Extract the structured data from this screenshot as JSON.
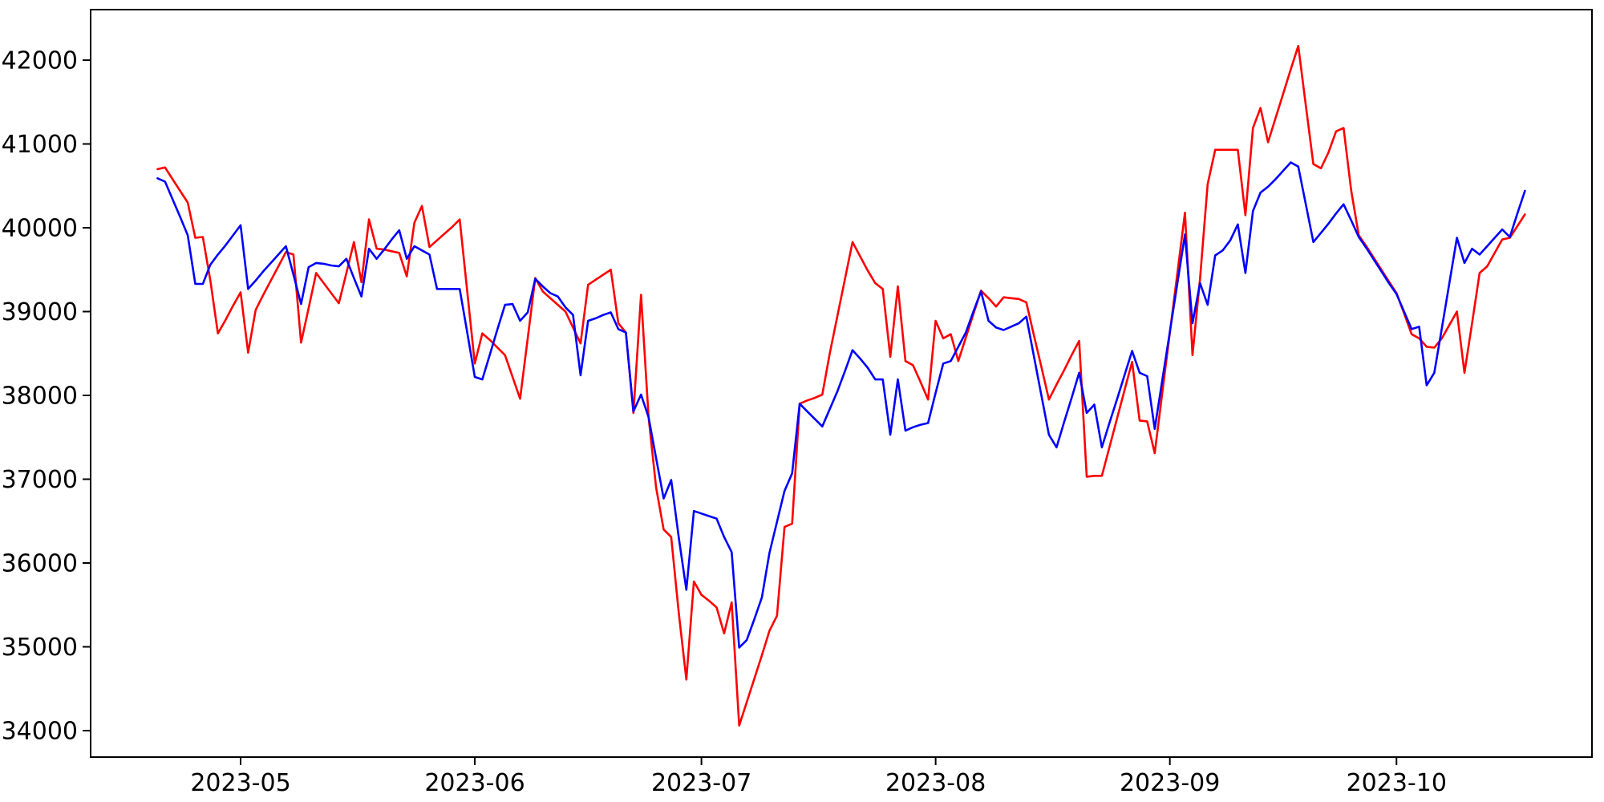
{
  "figure": {
    "background_color": "#ffffff",
    "spine_color": "#000000",
    "tick_label_color": "#000000"
  },
  "chart_data": {
    "type": "line",
    "title": "",
    "xlabel": "",
    "ylabel": "",
    "grid": false,
    "legend": null,
    "x_tick_labels": [
      "2023-05",
      "2023-06",
      "2023-07",
      "2023-08",
      "2023-09",
      "2023-10"
    ],
    "y_tick_labels": [
      "34000",
      "35000",
      "36000",
      "37000",
      "38000",
      "39000",
      "40000",
      "41000",
      "42000"
    ],
    "y_ticks": [
      34000,
      35000,
      36000,
      37000,
      38000,
      39000,
      40000,
      41000,
      42000
    ],
    "ylim": [
      33700,
      42600
    ],
    "xlim": [
      "2023-04-11",
      "2023-10-27"
    ],
    "x": [
      "2023-04-20",
      "2023-04-21",
      "2023-04-22",
      "2023-04-23",
      "2023-04-24",
      "2023-04-25",
      "2023-04-26",
      "2023-04-27",
      "2023-04-28",
      "2023-04-29",
      "2023-04-30",
      "2023-05-01",
      "2023-05-02",
      "2023-05-03",
      "2023-05-04",
      "2023-05-05",
      "2023-05-06",
      "2023-05-07",
      "2023-05-08",
      "2023-05-09",
      "2023-05-10",
      "2023-05-11",
      "2023-05-12",
      "2023-05-13",
      "2023-05-14",
      "2023-05-15",
      "2023-05-16",
      "2023-05-17",
      "2023-05-18",
      "2023-05-19",
      "2023-05-20",
      "2023-05-21",
      "2023-05-22",
      "2023-05-23",
      "2023-05-24",
      "2023-05-25",
      "2023-05-26",
      "2023-05-27",
      "2023-05-28",
      "2023-05-29",
      "2023-05-30",
      "2023-05-31",
      "2023-06-01",
      "2023-06-02",
      "2023-06-03",
      "2023-06-04",
      "2023-06-05",
      "2023-06-06",
      "2023-06-07",
      "2023-06-08",
      "2023-06-09",
      "2023-06-10",
      "2023-06-11",
      "2023-06-12",
      "2023-06-13",
      "2023-06-14",
      "2023-06-15",
      "2023-06-16",
      "2023-06-17",
      "2023-06-18",
      "2023-06-19",
      "2023-06-20",
      "2023-06-21",
      "2023-06-22",
      "2023-06-23",
      "2023-06-24",
      "2023-06-25",
      "2023-06-26",
      "2023-06-27",
      "2023-06-28",
      "2023-06-29",
      "2023-06-30",
      "2023-07-01",
      "2023-07-02",
      "2023-07-03",
      "2023-07-04",
      "2023-07-05",
      "2023-07-06",
      "2023-07-07",
      "2023-07-08",
      "2023-07-09",
      "2023-07-10",
      "2023-07-11",
      "2023-07-12",
      "2023-07-13",
      "2023-07-14",
      "2023-07-15",
      "2023-07-16",
      "2023-07-17",
      "2023-07-18",
      "2023-07-19",
      "2023-07-20",
      "2023-07-21",
      "2023-07-22",
      "2023-07-23",
      "2023-07-24",
      "2023-07-25",
      "2023-07-26",
      "2023-07-27",
      "2023-07-28",
      "2023-07-29",
      "2023-07-30",
      "2023-07-31",
      "2023-08-01",
      "2023-08-02",
      "2023-08-03",
      "2023-08-04",
      "2023-08-05",
      "2023-08-06",
      "2023-08-07",
      "2023-08-08",
      "2023-08-09",
      "2023-08-10",
      "2023-08-11",
      "2023-08-12",
      "2023-08-13",
      "2023-08-14",
      "2023-08-15",
      "2023-08-16",
      "2023-08-17",
      "2023-08-18",
      "2023-08-19",
      "2023-08-20",
      "2023-08-21",
      "2023-08-22",
      "2023-08-23",
      "2023-08-24",
      "2023-08-25",
      "2023-08-26",
      "2023-08-27",
      "2023-08-28",
      "2023-08-29",
      "2023-08-30",
      "2023-08-31",
      "2023-09-01",
      "2023-09-02",
      "2023-09-03",
      "2023-09-04",
      "2023-09-05",
      "2023-09-06",
      "2023-09-07",
      "2023-09-08",
      "2023-09-09",
      "2023-09-10",
      "2023-09-11",
      "2023-09-12",
      "2023-09-13",
      "2023-09-14",
      "2023-09-15",
      "2023-09-16",
      "2023-09-17",
      "2023-09-18",
      "2023-09-19",
      "2023-09-20",
      "2023-09-21",
      "2023-09-22",
      "2023-09-23",
      "2023-09-24",
      "2023-09-25",
      "2023-09-26",
      "2023-09-27",
      "2023-09-28",
      "2023-09-29",
      "2023-09-30",
      "2023-10-01",
      "2023-10-02",
      "2023-10-03",
      "2023-10-04",
      "2023-10-05",
      "2023-10-06",
      "2023-10-07",
      "2023-10-08",
      "2023-10-09",
      "2023-10-10",
      "2023-10-11",
      "2023-10-12",
      "2023-10-13",
      "2023-10-14",
      "2023-10-15",
      "2023-10-16",
      "2023-10-17",
      "2023-10-18"
    ],
    "series": [
      {
        "name": "red-series",
        "color": "#ff0000",
        "values": [
          40700,
          40720,
          40580,
          40440,
          40300,
          39880,
          39890,
          39370,
          38740,
          38900,
          39070,
          39230,
          38510,
          39020,
          39200,
          39370,
          39540,
          39710,
          39680,
          38630,
          39040,
          39460,
          39340,
          39220,
          39100,
          39460,
          39830,
          39350,
          40100,
          39750,
          39740,
          39720,
          39700,
          39420,
          40060,
          40260,
          39770,
          39850,
          39930,
          40010,
          40100,
          39240,
          38380,
          38740,
          38660,
          38570,
          38480,
          38220,
          37960,
          38680,
          39400,
          39240,
          39160,
          39080,
          39000,
          38810,
          38620,
          39320,
          39380,
          39440,
          39500,
          38860,
          38750,
          37790,
          39200,
          37740,
          36900,
          36400,
          36310,
          35400,
          34610,
          35780,
          35620,
          35550,
          35470,
          35160,
          35530,
          34060,
          34340,
          34620,
          34900,
          35190,
          35370,
          36430,
          36470,
          37900,
          37940,
          37970,
          38010,
          38510,
          38950,
          39390,
          39830,
          39660,
          39490,
          39340,
          39270,
          38460,
          39300,
          38410,
          38360,
          38160,
          37950,
          38890,
          38680,
          38730,
          38410,
          38690,
          38970,
          39250,
          39160,
          39060,
          39170,
          39160,
          39150,
          39110,
          38720,
          38340,
          37950,
          38130,
          38300,
          38480,
          38650,
          37030,
          37040,
          37040,
          37380,
          37720,
          38060,
          38400,
          37700,
          37690,
          37310,
          38030,
          38750,
          39460,
          40180,
          38480,
          39390,
          40520,
          40930,
          40930,
          40930,
          40930,
          40150,
          41190,
          41430,
          41020,
          41310,
          41600,
          41890,
          42170,
          41460,
          40760,
          40710,
          40900,
          41150,
          41190,
          40450,
          39910,
          39780,
          39640,
          39500,
          39360,
          39220,
          38980,
          38730,
          38680,
          38580,
          38570,
          38680,
          38840,
          39000,
          38270,
          38860,
          39460,
          39540,
          39700,
          39860,
          39880,
          40020,
          40160
        ]
      },
      {
        "name": "blue-series",
        "color": "#0000ff",
        "values": [
          40590,
          40550,
          40340,
          40130,
          39910,
          39330,
          39330,
          39560,
          39680,
          39790,
          39910,
          40030,
          39270,
          39370,
          39480,
          39580,
          39680,
          39780,
          39440,
          39090,
          39530,
          39580,
          39570,
          39550,
          39540,
          39630,
          39400,
          39180,
          39750,
          39630,
          39740,
          39860,
          39970,
          39630,
          39780,
          39730,
          39680,
          39270,
          39270,
          39270,
          39270,
          38750,
          38220,
          38190,
          38490,
          38790,
          39080,
          39090,
          38890,
          38990,
          39390,
          39300,
          39220,
          39180,
          39050,
          38960,
          38240,
          38890,
          38920,
          38960,
          38990,
          38790,
          38750,
          37810,
          38010,
          37740,
          37250,
          36770,
          36990,
          36300,
          35680,
          36620,
          36590,
          36560,
          36530,
          36310,
          36130,
          34990,
          35080,
          35330,
          35590,
          36120,
          36490,
          36860,
          37070,
          37900,
          37810,
          37720,
          37630,
          37840,
          38050,
          38290,
          38540,
          38440,
          38330,
          38190,
          38190,
          37530,
          38190,
          37580,
          37620,
          37650,
          37670,
          38030,
          38380,
          38410,
          38580,
          38750,
          39000,
          39240,
          38890,
          38810,
          38780,
          38820,
          38860,
          38940,
          38470,
          38000,
          37530,
          37380,
          37680,
          37970,
          38270,
          37790,
          37890,
          37380,
          37670,
          37950,
          38240,
          38530,
          38270,
          38230,
          37600,
          38180,
          38760,
          39340,
          39920,
          38860,
          39340,
          39080,
          39670,
          39730,
          39850,
          40040,
          39460,
          40200,
          40420,
          40490,
          40580,
          40680,
          40780,
          40730,
          40280,
          39830,
          39940,
          40050,
          40170,
          40280,
          40090,
          39890,
          39760,
          39620,
          39480,
          39340,
          39210,
          39000,
          38790,
          38820,
          38120,
          38270,
          38800,
          39340,
          39880,
          39580,
          39750,
          39680,
          39780,
          39880,
          39980,
          39890,
          40170,
          40440
        ]
      }
    ]
  }
}
